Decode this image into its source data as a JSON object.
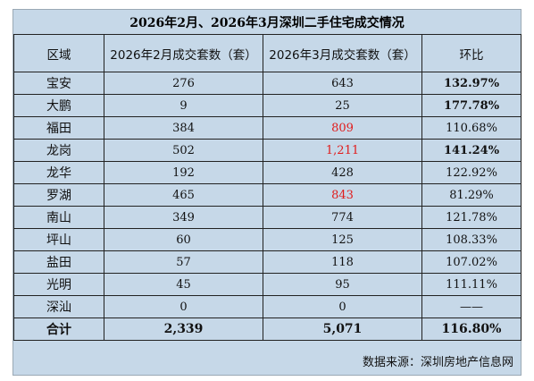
{
  "title": "2026年2月、2026年3月深圳二手住宅成交情况",
  "headers": [
    "区域",
    "2026年2月成交套数（套）",
    "2026年3月成交套数（套）",
    "环比"
  ],
  "rows": [
    {
      "region": "宝安",
      "feb": "276",
      "mar": "643",
      "ratio": "132.97%",
      "ratio_bold": true,
      "mar_red": false
    },
    {
      "region": "大鹏",
      "feb": "9",
      "mar": "25",
      "ratio": "177.78%",
      "ratio_bold": true,
      "mar_red": false
    },
    {
      "region": "福田",
      "feb": "384",
      "mar": "809",
      "ratio": "110.68%",
      "ratio_bold": false,
      "mar_red": true
    },
    {
      "region": "龙岗",
      "feb": "502",
      "mar": "1,211",
      "ratio": "141.24%",
      "ratio_bold": true,
      "mar_red": true
    },
    {
      "region": "龙华",
      "feb": "192",
      "mar": "428",
      "ratio": "122.92%",
      "ratio_bold": false,
      "mar_red": false
    },
    {
      "region": "罗湖",
      "feb": "465",
      "mar": "843",
      "ratio": "81.29%",
      "ratio_bold": false,
      "mar_red": true
    },
    {
      "region": "南山",
      "feb": "349",
      "mar": "774",
      "ratio": "121.78%",
      "ratio_bold": false,
      "mar_red": false
    },
    {
      "region": "坪山",
      "feb": "60",
      "mar": "125",
      "ratio": "108.33%",
      "ratio_bold": false,
      "mar_red": false
    },
    {
      "region": "盐田",
      "feb": "57",
      "mar": "118",
      "ratio": "107.02%",
      "ratio_bold": false,
      "mar_red": false
    },
    {
      "region": "光明",
      "feb": "45",
      "mar": "95",
      "ratio": "111.11%",
      "ratio_bold": false,
      "mar_red": false
    },
    {
      "region": "深汕",
      "feb": "0",
      "mar": "0",
      "ratio": "——",
      "ratio_bold": false,
      "mar_red": false
    }
  ],
  "total": {
    "region": "合计",
    "feb": "2,339",
    "mar": "5,071",
    "ratio": "116.80%"
  },
  "source": "数据来源：深圳房地产信息网",
  "colors": {
    "background": "#c6d8e8",
    "highlight": "#e11b1b",
    "border": "#222222"
  }
}
